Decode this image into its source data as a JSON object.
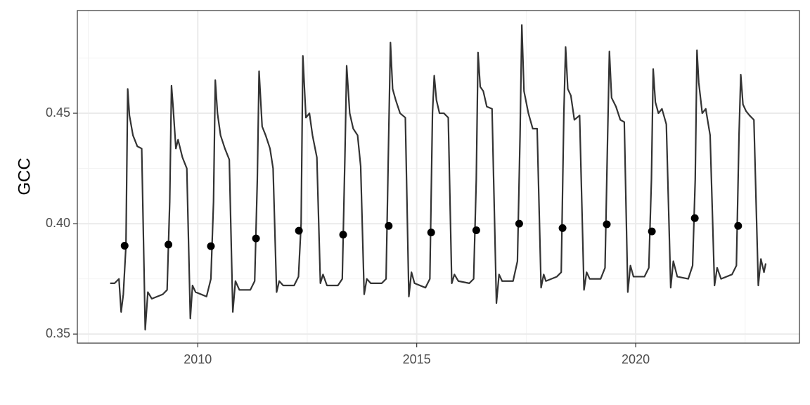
{
  "chart_data": {
    "type": "line",
    "ylabel": "GCC",
    "xlim": [
      2007.25,
      2023.74
    ],
    "ylim": [
      0.3459,
      0.4965
    ],
    "xticks": [
      2010,
      2015,
      2020
    ],
    "yticks": [
      0.35,
      {
        "value": 0.4,
        "label": "0.40"
      },
      0.45
    ],
    "x_minor_ticks": [
      2007.5,
      2012.5,
      2017.5,
      2022.5
    ],
    "y_minor_ticks": [
      0.375,
      0.425,
      0.475
    ],
    "grid": true,
    "line": {
      "color": "#333333",
      "x": [
        2008.0,
        2008.1,
        2008.2,
        2008.25,
        2008.3,
        2008.36,
        2008.4,
        2008.44,
        2008.52,
        2008.62,
        2008.72,
        2008.8,
        2008.86,
        2008.95,
        2009.2,
        2009.3,
        2009.36,
        2009.4,
        2009.44,
        2009.5,
        2009.55,
        2009.65,
        2009.75,
        2009.83,
        2009.88,
        2009.95,
        2010.2,
        2010.3,
        2010.36,
        2010.4,
        2010.45,
        2010.52,
        2010.62,
        2010.72,
        2010.8,
        2010.86,
        2010.95,
        2011.2,
        2011.3,
        2011.36,
        2011.4,
        2011.47,
        2011.55,
        2011.65,
        2011.72,
        2011.8,
        2011.86,
        2011.95,
        2012.2,
        2012.3,
        2012.36,
        2012.4,
        2012.47,
        2012.55,
        2012.62,
        2012.72,
        2012.8,
        2012.86,
        2012.95,
        2013.2,
        2013.3,
        2013.36,
        2013.4,
        2013.47,
        2013.55,
        2013.65,
        2013.72,
        2013.8,
        2013.86,
        2013.95,
        2014.2,
        2014.3,
        2014.36,
        2014.4,
        2014.45,
        2014.52,
        2014.62,
        2014.74,
        2014.82,
        2014.88,
        2014.95,
        2015.2,
        2015.3,
        2015.36,
        2015.4,
        2015.45,
        2015.52,
        2015.62,
        2015.72,
        2015.8,
        2015.86,
        2015.95,
        2016.2,
        2016.3,
        2016.36,
        2016.4,
        2016.45,
        2016.52,
        2016.6,
        2016.72,
        2016.82,
        2016.88,
        2016.95,
        2017.2,
        2017.3,
        2017.36,
        2017.4,
        2017.45,
        2017.55,
        2017.65,
        2017.75,
        2017.84,
        2017.9,
        2017.95,
        2018.2,
        2018.3,
        2018.36,
        2018.4,
        2018.45,
        2018.52,
        2018.6,
        2018.72,
        2018.82,
        2018.88,
        2018.95,
        2019.2,
        2019.3,
        2019.36,
        2019.4,
        2019.45,
        2019.55,
        2019.65,
        2019.74,
        2019.82,
        2019.88,
        2019.95,
        2020.2,
        2020.3,
        2020.36,
        2020.4,
        2020.45,
        2020.52,
        2020.6,
        2020.7,
        2020.8,
        2020.86,
        2020.95,
        2021.2,
        2021.3,
        2021.36,
        2021.4,
        2021.44,
        2021.52,
        2021.6,
        2021.7,
        2021.8,
        2021.86,
        2021.95,
        2022.2,
        2022.3,
        2022.36,
        2022.4,
        2022.45,
        2022.52,
        2022.6,
        2022.7,
        2022.8,
        2022.86,
        2022.93,
        2022.97
      ],
      "values": [
        0.373,
        0.373,
        0.375,
        0.36,
        0.368,
        0.39,
        0.461,
        0.449,
        0.44,
        0.435,
        0.434,
        0.352,
        0.369,
        0.366,
        0.368,
        0.37,
        0.41,
        0.4625,
        0.452,
        0.434,
        0.438,
        0.43,
        0.425,
        0.357,
        0.372,
        0.369,
        0.367,
        0.375,
        0.41,
        0.465,
        0.45,
        0.44,
        0.434,
        0.429,
        0.36,
        0.374,
        0.37,
        0.37,
        0.374,
        0.42,
        0.469,
        0.444,
        0.44,
        0.434,
        0.425,
        0.369,
        0.374,
        0.372,
        0.372,
        0.376,
        0.4,
        0.476,
        0.448,
        0.45,
        0.44,
        0.43,
        0.373,
        0.377,
        0.372,
        0.372,
        0.375,
        0.43,
        0.4715,
        0.45,
        0.443,
        0.44,
        0.426,
        0.368,
        0.375,
        0.373,
        0.373,
        0.375,
        0.44,
        0.482,
        0.461,
        0.456,
        0.45,
        0.448,
        0.367,
        0.378,
        0.373,
        0.371,
        0.375,
        0.45,
        0.467,
        0.456,
        0.45,
        0.45,
        0.448,
        0.373,
        0.377,
        0.374,
        0.373,
        0.375,
        0.42,
        0.4775,
        0.462,
        0.46,
        0.453,
        0.452,
        0.364,
        0.377,
        0.374,
        0.374,
        0.383,
        0.44,
        0.49,
        0.46,
        0.45,
        0.443,
        0.443,
        0.371,
        0.377,
        0.374,
        0.376,
        0.378,
        0.45,
        0.48,
        0.461,
        0.458,
        0.447,
        0.449,
        0.37,
        0.378,
        0.375,
        0.375,
        0.38,
        0.44,
        0.478,
        0.457,
        0.453,
        0.447,
        0.446,
        0.369,
        0.381,
        0.376,
        0.376,
        0.38,
        0.42,
        0.47,
        0.455,
        0.45,
        0.452,
        0.445,
        0.371,
        0.383,
        0.376,
        0.375,
        0.381,
        0.42,
        0.4785,
        0.464,
        0.45,
        0.452,
        0.44,
        0.372,
        0.38,
        0.375,
        0.377,
        0.381,
        0.44,
        0.4675,
        0.454,
        0.451,
        0.449,
        0.447,
        0.372,
        0.384,
        0.378,
        0.382
      ]
    },
    "points": {
      "color": "#000000",
      "x": [
        2008.33,
        2009.33,
        2010.3,
        2011.33,
        2012.31,
        2013.32,
        2014.36,
        2015.33,
        2016.36,
        2017.34,
        2018.33,
        2019.34,
        2020.37,
        2021.35,
        2022.34
      ],
      "values": [
        0.39,
        0.3905,
        0.3898,
        0.3933,
        0.3968,
        0.395,
        0.399,
        0.396,
        0.397,
        0.4,
        0.398,
        0.3997,
        0.3965,
        0.4025,
        0.399
      ]
    }
  }
}
